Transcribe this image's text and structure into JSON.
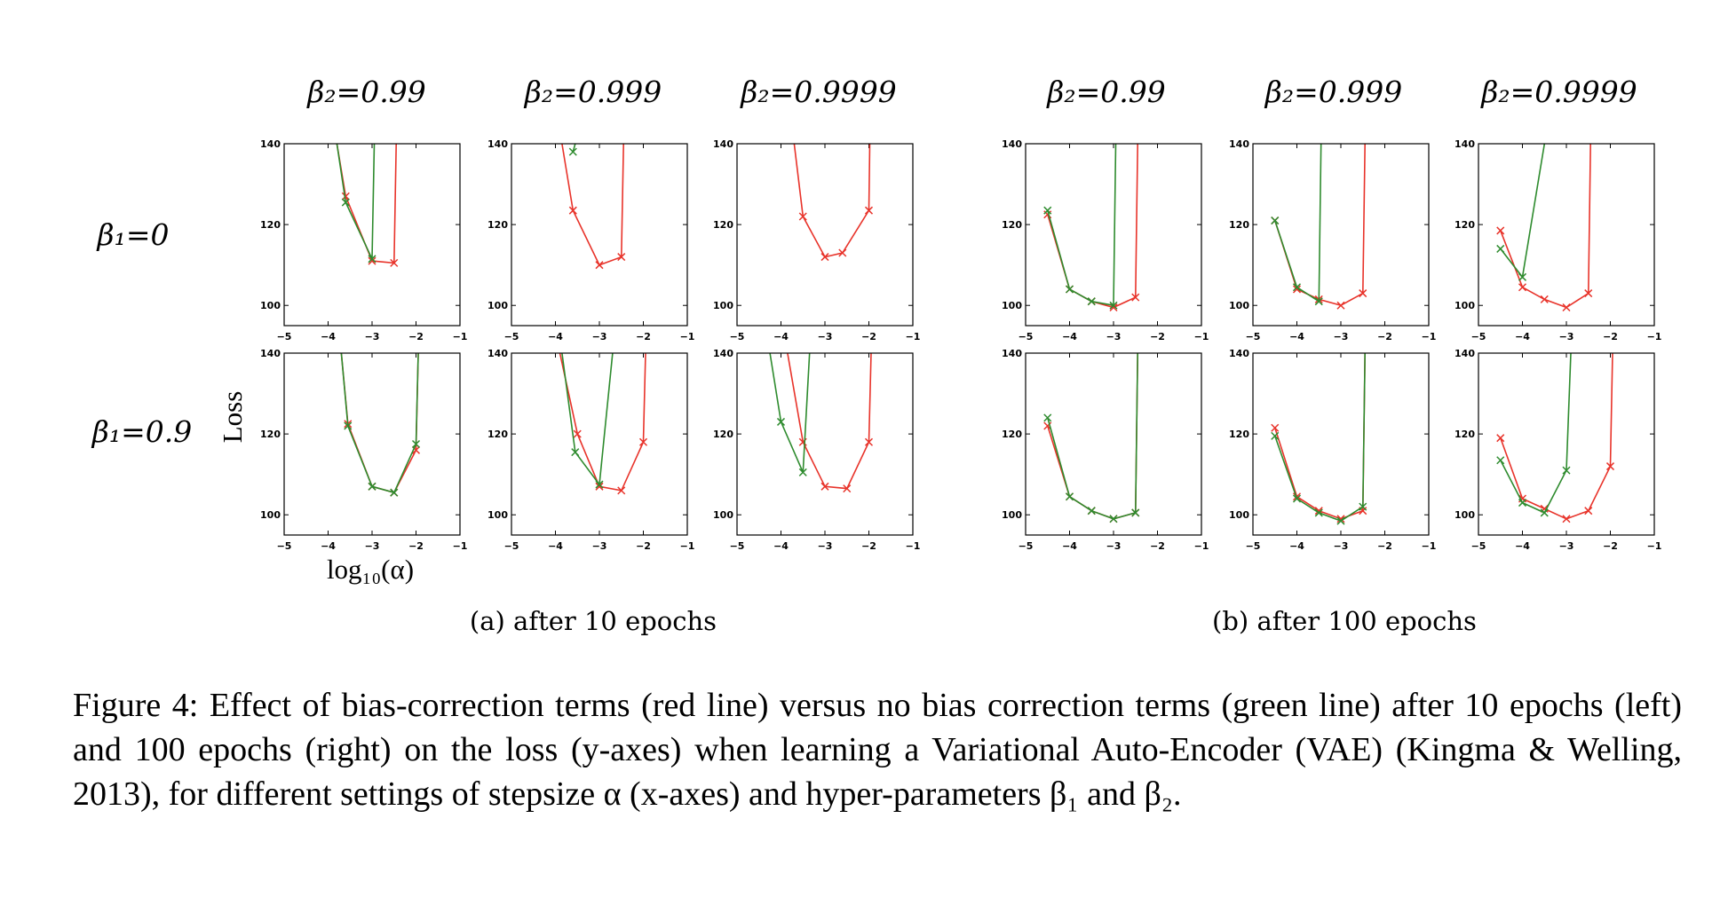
{
  "figure": {
    "beta2_labels": [
      "β₂=0.99",
      "β₂=0.999",
      "β₂=0.9999",
      "β₂=0.99",
      "β₂=0.999",
      "β₂=0.9999"
    ],
    "beta1_labels": [
      "β₁=0",
      "β₁=0.9"
    ],
    "ylabel": "Loss",
    "xlabel": "log₁₀(α)",
    "sub_a": "(a) after 10 epochs",
    "sub_b": "(b) after 100 epochs",
    "x_ticks": [
      "−5",
      "−4",
      "−3",
      "−2",
      "−1"
    ],
    "y_ticks": [
      "100",
      "120",
      "140"
    ],
    "colors": {
      "bias_correction": "#e8332a",
      "no_bias_correction": "#2e8b2e"
    }
  },
  "caption": {
    "text": "Figure 4:  Effect of bias-correction terms (red line) versus no bias correction terms (green line) after 10 epochs (left) and 100 epochs (right) on the loss (y-axes) when learning a Variational Auto-Encoder (VAE) (Kingma & Welling, 2013), for different settings of stepsize α (x-axes) and hyper-parameters β₁ and β₂."
  },
  "chart_data": [
    {
      "type": "line",
      "epochs": "10",
      "beta1": "0",
      "beta2": "0.99",
      "xlim": [
        -5,
        -1
      ],
      "ylim": [
        95,
        140
      ],
      "series": [
        {
          "name": "red line",
          "x": [
            -3.8,
            -3.6,
            -3.0,
            -2.5,
            -2.45
          ],
          "y": [
            140,
            127,
            111,
            110.5,
            140
          ]
        },
        {
          "name": "green line",
          "x": [
            -3.8,
            -3.6,
            -3.0,
            -2.95
          ],
          "y": [
            140,
            125.5,
            111.5,
            140
          ]
        }
      ]
    },
    {
      "type": "line",
      "epochs": "10",
      "beta1": "0",
      "beta2": "0.999",
      "xlim": [
        -5,
        -1
      ],
      "ylim": [
        95,
        140
      ],
      "series": [
        {
          "name": "red line",
          "x": [
            -3.85,
            -3.6,
            -3.0,
            -2.5,
            -2.45
          ],
          "y": [
            140,
            123.5,
            110,
            112,
            140
          ]
        },
        {
          "name": "green line",
          "x": [
            -3.6,
            -3.55
          ],
          "y": [
            138,
            140
          ]
        }
      ]
    },
    {
      "type": "line",
      "epochs": "10",
      "beta1": "0",
      "beta2": "0.9999",
      "xlim": [
        -5,
        -1
      ],
      "ylim": [
        95,
        140
      ],
      "series": [
        {
          "name": "red line",
          "x": [
            -3.7,
            -3.5,
            -3.0,
            -2.6,
            -2.0,
            -1.98
          ],
          "y": [
            140,
            122,
            112,
            113,
            123.5,
            140
          ]
        }
      ]
    },
    {
      "type": "line",
      "epochs": "10",
      "beta1": "0.9",
      "beta2": "0.99",
      "xlim": [
        -5,
        -1
      ],
      "ylim": [
        95,
        140
      ],
      "series": [
        {
          "name": "red line",
          "x": [
            -3.7,
            -3.55,
            -3.0,
            -2.5,
            -2.0,
            -1.95
          ],
          "y": [
            140,
            122.5,
            107,
            105.5,
            116,
            140
          ]
        },
        {
          "name": "green line",
          "x": [
            -3.7,
            -3.55,
            -3.0,
            -2.5,
            -2.0,
            -1.95
          ],
          "y": [
            140,
            122,
            107,
            105.5,
            117.5,
            140
          ]
        }
      ]
    },
    {
      "type": "line",
      "epochs": "10",
      "beta1": "0.9",
      "beta2": "0.999",
      "xlim": [
        -5,
        -1
      ],
      "ylim": [
        95,
        140
      ],
      "series": [
        {
          "name": "red line",
          "x": [
            -3.9,
            -3.5,
            -3.0,
            -2.5,
            -2.0,
            -1.95
          ],
          "y": [
            140,
            120,
            107,
            106,
            118,
            140
          ]
        },
        {
          "name": "green line",
          "x": [
            -3.85,
            -3.55,
            -3.0,
            -2.7
          ],
          "y": [
            140,
            115.5,
            107.5,
            140
          ]
        }
      ]
    },
    {
      "type": "line",
      "epochs": "10",
      "beta1": "0.9",
      "beta2": "0.9999",
      "xlim": [
        -5,
        -1
      ],
      "ylim": [
        95,
        140
      ],
      "series": [
        {
          "name": "red line",
          "x": [
            -3.85,
            -3.5,
            -3.0,
            -2.5,
            -2.0,
            -1.95
          ],
          "y": [
            140,
            118,
            107,
            106.5,
            118,
            140
          ]
        },
        {
          "name": "green line",
          "x": [
            -4.25,
            -4.0,
            -3.5,
            -3.35
          ],
          "y": [
            140,
            123,
            110.5,
            140
          ]
        }
      ]
    },
    {
      "type": "line",
      "epochs": "100",
      "beta1": "0",
      "beta2": "0.99",
      "xlim": [
        -5,
        -1
      ],
      "ylim": [
        95,
        140
      ],
      "series": [
        {
          "name": "red line",
          "x": [
            -4.5,
            -4.0,
            -3.5,
            -3.0,
            -2.5,
            -2.45
          ],
          "y": [
            122.5,
            104,
            101,
            99.5,
            102,
            140
          ]
        },
        {
          "name": "green line",
          "x": [
            -4.5,
            -4.0,
            -3.5,
            -3.0,
            -2.95
          ],
          "y": [
            123.5,
            104,
            101,
            100,
            140
          ]
        }
      ]
    },
    {
      "type": "line",
      "epochs": "100",
      "beta1": "0",
      "beta2": "0.999",
      "xlim": [
        -5,
        -1
      ],
      "ylim": [
        95,
        140
      ],
      "series": [
        {
          "name": "red line",
          "x": [
            -4.5,
            -4.0,
            -3.5,
            -3.0,
            -2.5,
            -2.45
          ],
          "y": [
            121,
            104,
            101.5,
            100,
            103,
            140
          ]
        },
        {
          "name": "green line",
          "x": [
            -4.5,
            -4.0,
            -3.5,
            -3.45
          ],
          "y": [
            121,
            104.5,
            101,
            140
          ]
        }
      ]
    },
    {
      "type": "line",
      "epochs": "100",
      "beta1": "0",
      "beta2": "0.9999",
      "xlim": [
        -5,
        -1
      ],
      "ylim": [
        95,
        140
      ],
      "series": [
        {
          "name": "red line",
          "x": [
            -4.5,
            -4.0,
            -3.5,
            -3.0,
            -2.5,
            -2.45
          ],
          "y": [
            118.5,
            104.5,
            101.5,
            99.5,
            103,
            140
          ]
        },
        {
          "name": "green line",
          "x": [
            -4.5,
            -4.0,
            -3.5
          ],
          "y": [
            114,
            107,
            140
          ]
        }
      ]
    },
    {
      "type": "line",
      "epochs": "100",
      "beta1": "0.9",
      "beta2": "0.99",
      "xlim": [
        -5,
        -1
      ],
      "ylim": [
        95,
        140
      ],
      "series": [
        {
          "name": "red line",
          "x": [
            -4.5,
            -4.0,
            -3.5,
            -3.0,
            -2.5,
            -2.45
          ],
          "y": [
            122,
            104.5,
            101,
            99,
            100.5,
            140
          ]
        },
        {
          "name": "green line",
          "x": [
            -4.5,
            -4.0,
            -3.5,
            -3.0,
            -2.5,
            -2.45
          ],
          "y": [
            124,
            104.5,
            101,
            99,
            100.5,
            140
          ]
        }
      ]
    },
    {
      "type": "line",
      "epochs": "100",
      "beta1": "0.9",
      "beta2": "0.999",
      "xlim": [
        -5,
        -1
      ],
      "ylim": [
        95,
        140
      ],
      "series": [
        {
          "name": "red line",
          "x": [
            -4.5,
            -4.0,
            -3.5,
            -3.0,
            -2.5,
            -2.45
          ],
          "y": [
            121.5,
            104.5,
            101,
            99,
            101,
            140
          ]
        },
        {
          "name": "green line",
          "x": [
            -4.5,
            -4.0,
            -3.5,
            -3.0,
            -2.5,
            -2.45
          ],
          "y": [
            119.5,
            104,
            100.5,
            98.5,
            102,
            140
          ]
        }
      ]
    },
    {
      "type": "line",
      "epochs": "100",
      "beta1": "0.9",
      "beta2": "0.9999",
      "xlim": [
        -5,
        -1
      ],
      "ylim": [
        95,
        140
      ],
      "series": [
        {
          "name": "red line",
          "x": [
            -4.5,
            -4.0,
            -3.5,
            -3.0,
            -2.5,
            -2.0,
            -1.95
          ],
          "y": [
            119,
            104,
            101.5,
            99,
            101,
            112,
            140
          ]
        },
        {
          "name": "green line",
          "x": [
            -4.5,
            -4.0,
            -3.5,
            -3.0,
            -2.9
          ],
          "y": [
            113.5,
            103,
            100.5,
            111,
            140
          ]
        }
      ]
    }
  ]
}
